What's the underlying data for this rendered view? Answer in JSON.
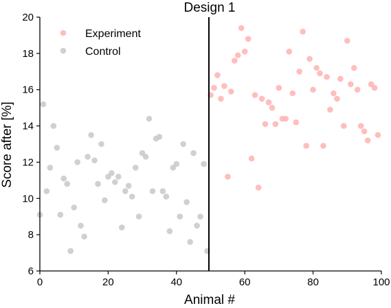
{
  "chart_data": {
    "type": "scatter",
    "title": "Design 1",
    "xlabel": "Animal #",
    "ylabel": "Score after [%]",
    "xlim": [
      0,
      100
    ],
    "ylim": [
      6,
      20
    ],
    "xticks": [
      0,
      20,
      40,
      60,
      80,
      100
    ],
    "yticks": [
      6,
      8,
      10,
      12,
      14,
      16,
      18,
      20
    ],
    "xtick_labels": [
      "0",
      "20",
      "40",
      "60",
      "80",
      "100"
    ],
    "ytick_labels": [
      "6",
      "8",
      "10",
      "12",
      "14",
      "16",
      "18",
      "20"
    ],
    "grid": false,
    "legend_position": "top-left",
    "divider_x": 49.5,
    "series": [
      {
        "name": "Experiment",
        "color": "#ffb3b0",
        "points": [
          [
            50,
            15.7
          ],
          [
            51,
            16.1
          ],
          [
            52,
            16.8
          ],
          [
            53,
            15.5
          ],
          [
            54,
            16.2
          ],
          [
            55,
            11.2
          ],
          [
            56,
            15.9
          ],
          [
            57,
            17.6
          ],
          [
            58,
            17.9
          ],
          [
            59,
            19.4
          ],
          [
            60,
            18.1
          ],
          [
            61,
            18.8
          ],
          [
            62,
            12.2
          ],
          [
            63,
            15.7
          ],
          [
            64,
            10.6
          ],
          [
            65,
            15.5
          ],
          [
            66,
            14.1
          ],
          [
            67,
            15.3
          ],
          [
            68,
            15.0
          ],
          [
            69,
            14.1
          ],
          [
            70,
            16.1
          ],
          [
            71,
            14.4
          ],
          [
            72,
            14.4
          ],
          [
            73,
            18.1
          ],
          [
            74,
            15.8
          ],
          [
            75,
            14.2
          ],
          [
            76,
            17.0
          ],
          [
            77,
            19.2
          ],
          [
            78,
            12.9
          ],
          [
            79,
            17.7
          ],
          [
            80,
            16.0
          ],
          [
            81,
            17.2
          ],
          [
            82,
            16.9
          ],
          [
            83,
            12.9
          ],
          [
            84,
            16.7
          ],
          [
            85,
            14.9
          ],
          [
            86,
            15.8
          ],
          [
            87,
            15.5
          ],
          [
            88,
            16.6
          ],
          [
            89,
            14.0
          ],
          [
            90,
            18.7
          ],
          [
            91,
            16.3
          ],
          [
            92,
            17.2
          ],
          [
            93,
            16.0
          ],
          [
            94,
            14.0
          ],
          [
            95,
            13.7
          ],
          [
            96,
            13.2
          ],
          [
            97,
            16.3
          ],
          [
            98,
            16.1
          ],
          [
            99,
            13.5
          ]
        ]
      },
      {
        "name": "Control",
        "color": "#c8c8c8",
        "points": [
          [
            0,
            9.1
          ],
          [
            1,
            15.2
          ],
          [
            2,
            10.4
          ],
          [
            3,
            11.7
          ],
          [
            4,
            14.0
          ],
          [
            5,
            12.8
          ],
          [
            6,
            9.1
          ],
          [
            7,
            11.1
          ],
          [
            8,
            10.8
          ],
          [
            9,
            7.1
          ],
          [
            10,
            9.5
          ],
          [
            11,
            12.0
          ],
          [
            12,
            8.5
          ],
          [
            13,
            7.9
          ],
          [
            14,
            12.3
          ],
          [
            15,
            13.5
          ],
          [
            16,
            12.1
          ],
          [
            17,
            10.8
          ],
          [
            18,
            13.0
          ],
          [
            19,
            9.9
          ],
          [
            20,
            11.2
          ],
          [
            21,
            11.4
          ],
          [
            22,
            10.9
          ],
          [
            23,
            11.2
          ],
          [
            24,
            8.4
          ],
          [
            25,
            10.4
          ],
          [
            26,
            10.7
          ],
          [
            27,
            10.1
          ],
          [
            28,
            11.7
          ],
          [
            29,
            9.0
          ],
          [
            30,
            12.5
          ],
          [
            31,
            12.3
          ],
          [
            32,
            14.4
          ],
          [
            33,
            10.4
          ],
          [
            34,
            13.3
          ],
          [
            35,
            13.4
          ],
          [
            36,
            10.4
          ],
          [
            37,
            10.1
          ],
          [
            38,
            8.2
          ],
          [
            39,
            11.7
          ],
          [
            40,
            11.9
          ],
          [
            41,
            9.0
          ],
          [
            42,
            13.0
          ],
          [
            43,
            9.8
          ],
          [
            44,
            7.6
          ],
          [
            45,
            12.5
          ],
          [
            46,
            8.5
          ],
          [
            47,
            9.0
          ],
          [
            48,
            11.9
          ],
          [
            49,
            7.1
          ]
        ]
      }
    ]
  }
}
